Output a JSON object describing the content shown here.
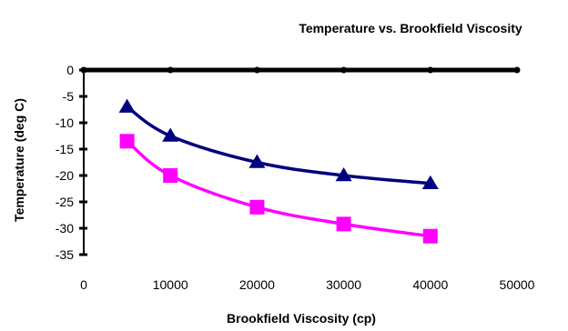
{
  "chart_data": {
    "type": "line",
    "title": "Temperature vs. Brookfield Viscosity",
    "xlabel": "Brookfield Viscosity (cp)",
    "ylabel": "Temperature (deg C)",
    "xlim": [
      0,
      50000
    ],
    "ylim": [
      -35,
      0
    ],
    "xticks": [
      0,
      10000,
      20000,
      30000,
      40000,
      50000
    ],
    "yticks": [
      0,
      -5,
      -10,
      -15,
      -20,
      -25,
      -30,
      -35
    ],
    "grid": false,
    "legend": "none",
    "series": [
      {
        "color": "#000080",
        "marker": "triangle",
        "x": [
          5000,
          10000,
          20000,
          30000,
          40000
        ],
        "y": [
          -7,
          -12.5,
          -17.5,
          -20,
          -21.5
        ]
      },
      {
        "color": "#ff00ff",
        "marker": "square",
        "x": [
          5000,
          10000,
          20000,
          30000,
          40000
        ],
        "y": [
          -13.5,
          -20,
          -26,
          -29.2,
          -31.5
        ]
      }
    ]
  }
}
